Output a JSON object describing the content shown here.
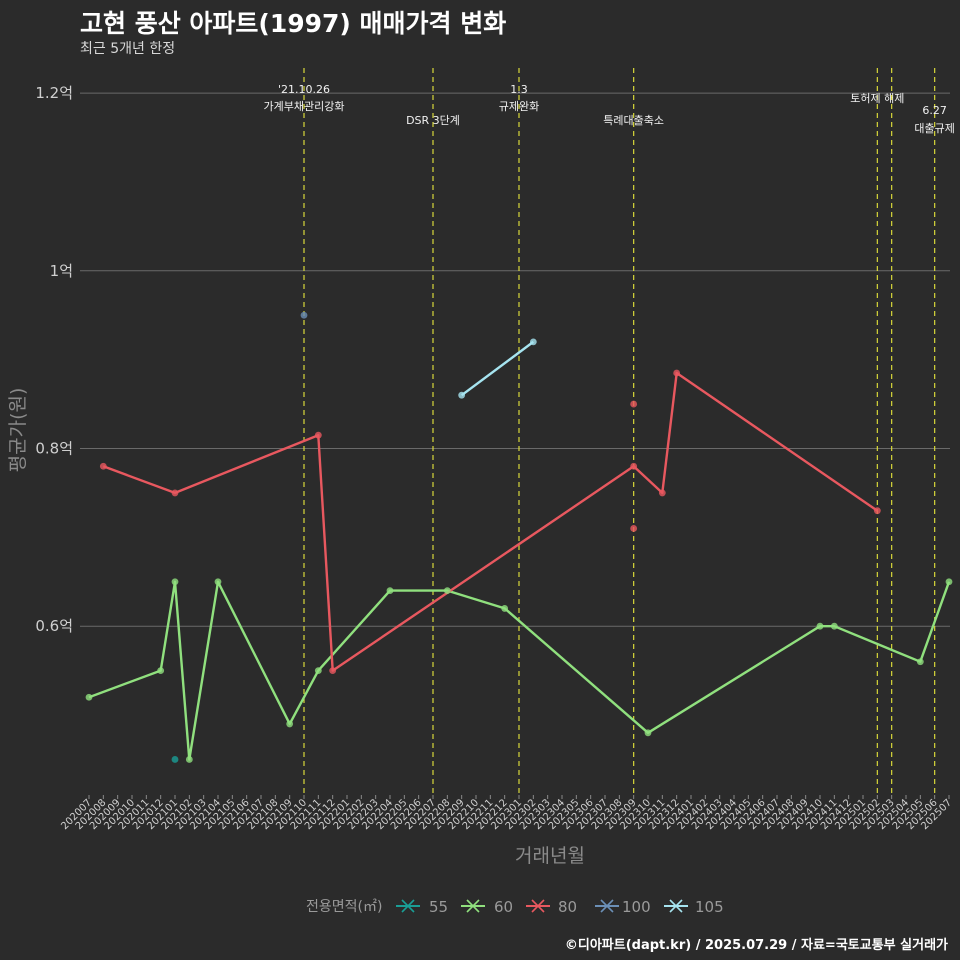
{
  "header": {
    "title": "고현 풍산 아파트(1997) 매매가격 변화",
    "subtitle": "최근 5개년 한정"
  },
  "caption": "©디아파트(dapt.kr) / 2025.07.29 / 자료=국토교통부 실거래가",
  "chart_data": {
    "type": "line",
    "xlabel": "거래년월",
    "ylabel": "평균가(원)",
    "ylim": [
      0.41,
      1.235
    ],
    "y_ticks": [
      {
        "value": 0.6,
        "label": "0.6억"
      },
      {
        "value": 0.8,
        "label": "0.8억"
      },
      {
        "value": 1.0,
        "label": "1억"
      },
      {
        "value": 1.2,
        "label": "1.2억"
      }
    ],
    "categories": [
      "202007",
      "202008",
      "202009",
      "202010",
      "202011",
      "202012",
      "202101",
      "202102",
      "202103",
      "202104",
      "202105",
      "202106",
      "202107",
      "202108",
      "202109",
      "202110",
      "202111",
      "202112",
      "202201",
      "202202",
      "202203",
      "202204",
      "202205",
      "202206",
      "202207",
      "202208",
      "202209",
      "202210",
      "202211",
      "202212",
      "202301",
      "202302",
      "202303",
      "202304",
      "202305",
      "202306",
      "202307",
      "202308",
      "202309",
      "202310",
      "202311",
      "202312",
      "202401",
      "202402",
      "202403",
      "202404",
      "202405",
      "202406",
      "202407",
      "202408",
      "202409",
      "202410",
      "202411",
      "202412",
      "202501",
      "202502",
      "202503",
      "202504",
      "202505",
      "202506",
      "202507"
    ],
    "events": [
      {
        "x": "202110",
        "lines": [
          "'21.10.26",
          "가계부채관리강화"
        ],
        "pos": "high"
      },
      {
        "x": "202207",
        "lines": [
          "DSR 3단계"
        ],
        "pos": "low"
      },
      {
        "x": "202301",
        "lines": [
          "1.3",
          "규제완화"
        ],
        "pos": "high"
      },
      {
        "x": "202309",
        "lines": [
          "특례대출축소"
        ],
        "pos": "low"
      },
      {
        "x": "202502",
        "lines": [
          "토허제 해제"
        ],
        "pos": "mid"
      },
      {
        "x": "202503",
        "lines": [],
        "pos": "mid"
      },
      {
        "x": "202506",
        "lines": [
          "6.27",
          "대출규제"
        ],
        "pos": "low2"
      }
    ],
    "series": [
      {
        "name": "55",
        "color": "#1a9e96",
        "line": [],
        "points": [
          [
            "202101",
            0.45
          ]
        ]
      },
      {
        "name": "60",
        "color": "#90e07e",
        "line": [
          [
            "202007",
            0.52
          ],
          [
            "202012",
            0.55
          ],
          [
            "202101",
            0.65
          ],
          [
            "202102",
            0.45
          ],
          [
            "202104",
            0.65
          ],
          [
            "202109",
            0.49
          ],
          [
            "202111",
            0.55
          ],
          [
            "202204",
            0.64
          ],
          [
            "202208",
            0.64
          ],
          [
            "202212",
            0.62
          ],
          [
            "202310",
            0.48
          ],
          [
            "202410",
            0.6
          ],
          [
            "202411",
            0.6
          ],
          [
            "202505",
            0.56
          ],
          [
            "202507",
            0.65
          ]
        ],
        "points": [
          [
            "202007",
            0.52
          ],
          [
            "202012",
            0.55
          ],
          [
            "202101",
            0.65
          ],
          [
            "202102",
            0.45
          ],
          [
            "202104",
            0.65
          ],
          [
            "202109",
            0.49
          ],
          [
            "202111",
            0.55
          ],
          [
            "202204",
            0.64
          ],
          [
            "202208",
            0.64
          ],
          [
            "202212",
            0.62
          ],
          [
            "202310",
            0.48
          ],
          [
            "202410",
            0.6
          ],
          [
            "202411",
            0.6
          ],
          [
            "202505",
            0.56
          ],
          [
            "202507",
            0.65
          ]
        ]
      },
      {
        "name": "80",
        "color": "#e8585f",
        "line": [
          [
            "202008",
            0.78
          ],
          [
            "202101",
            0.75
          ],
          [
            "202111",
            0.815
          ],
          [
            "202112",
            0.55
          ],
          [
            "202309",
            0.78
          ],
          [
            "202311",
            0.75
          ],
          [
            "202312",
            0.885
          ],
          [
            "202502",
            0.73
          ]
        ],
        "points": [
          [
            "202008",
            0.78
          ],
          [
            "202101",
            0.75
          ],
          [
            "202111",
            0.815
          ],
          [
            "202112",
            0.55
          ],
          [
            "202309",
            0.78
          ],
          [
            "202309",
            0.85
          ],
          [
            "202309",
            0.71
          ],
          [
            "202311",
            0.75
          ],
          [
            "202312",
            0.885
          ],
          [
            "202502",
            0.73
          ]
        ]
      },
      {
        "name": "100",
        "color": "#6b8fb6",
        "line": [],
        "points": [
          [
            "202110",
            0.95
          ]
        ]
      },
      {
        "name": "105",
        "color": "#a6e4f0",
        "line": [
          [
            "202209",
            0.86
          ],
          [
            "202302",
            0.92
          ]
        ],
        "points": [
          [
            "202209",
            0.86
          ],
          [
            "202302",
            0.92
          ]
        ]
      }
    ],
    "legend": {
      "title": "전용면적(㎡)",
      "position": "bottom"
    }
  }
}
